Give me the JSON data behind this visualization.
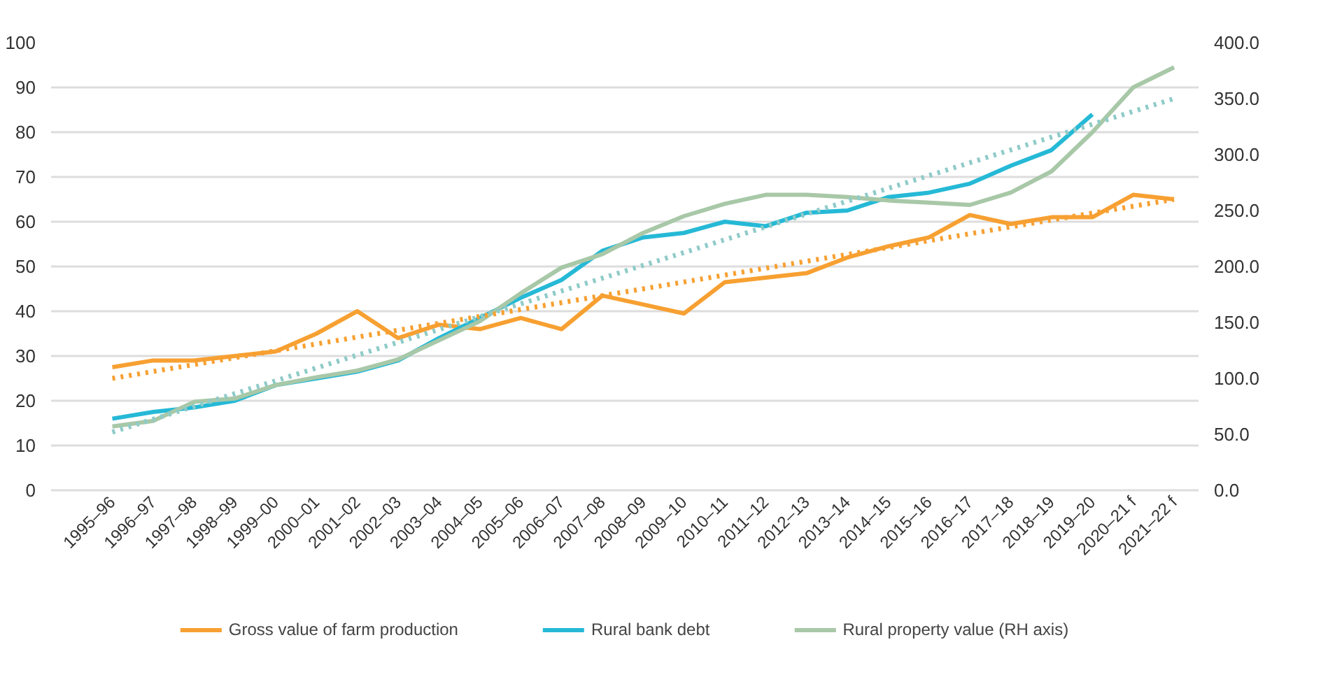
{
  "chart_data": {
    "type": "line",
    "categories": [
      "1995–96",
      "1996–97",
      "1997–98",
      "1998–99",
      "1999–00",
      "2000–01",
      "2001–02",
      "2002–03",
      "2003–04",
      "2004–05",
      "2005–06",
      "2006–07",
      "2007–08",
      "2008–09",
      "2009–10",
      "2010–11",
      "2011–12",
      "2012–13",
      "2013–14",
      "2014–15",
      "2015–16",
      "2016–17",
      "2017–18",
      "2018–19",
      "2019–20",
      "2020–21 f",
      "2021–22 f"
    ],
    "series": [
      {
        "name": "Gross value of farm production",
        "color": "#f7a032",
        "values": [
          27.5,
          29,
          29,
          30,
          31,
          35,
          40,
          34,
          37,
          36,
          38.5,
          36,
          43.5,
          41.5,
          39.5,
          46.5,
          47.5,
          48.5,
          52,
          54.5,
          56.5,
          61.5,
          59.5,
          61,
          61,
          66,
          65
        ]
      },
      {
        "name": "Rural bank debt",
        "color": "#25b9d6",
        "values": [
          16,
          17.5,
          18.5,
          20,
          23.5,
          25,
          26.5,
          29,
          34,
          38.5,
          43,
          47,
          53.5,
          56.5,
          57.5,
          60,
          59,
          62,
          62.5,
          65.5,
          66.5,
          68.5,
          72.5,
          76,
          84,
          null,
          null
        ]
      },
      {
        "name": "Rural property value (RH axis)",
        "color": "#a8c8a8",
        "axis": "y2",
        "values": [
          57,
          62,
          79,
          82,
          94,
          101,
          107,
          117,
          134,
          151,
          176,
          199,
          211,
          230,
          245,
          256,
          264,
          264,
          262,
          259,
          257,
          255,
          266,
          285,
          320,
          360,
          378
        ]
      },
      {
        "type": "line",
        "color": "#f7a032",
        "line_style": "dotted",
        "x": [
          "1995–96",
          "2021–22 f"
        ],
        "values": [
          25,
          65
        ]
      },
      {
        "type": "line",
        "color": "#8fcbc8",
        "line_style": "dotted",
        "axis": "y2",
        "x": [
          "1995–96",
          "2021–22 f"
        ],
        "values": [
          52,
          350
        ]
      }
    ],
    "ylim": [
      0,
      100
    ],
    "yticks": [
      0,
      10,
      20,
      30,
      40,
      50,
      60,
      70,
      80,
      90,
      100
    ],
    "y2lim": [
      0,
      400
    ],
    "y2ticks": [
      {
        "value": 0,
        "label": "0.0"
      },
      {
        "value": 50,
        "label": "50.0"
      },
      {
        "value": 100,
        "label": "100.0"
      },
      {
        "value": 150,
        "label": "150.0"
      },
      {
        "value": 200,
        "label": "200.0"
      },
      {
        "value": 250,
        "label": "250.0"
      },
      {
        "value": 300,
        "label": "300.0"
      },
      {
        "value": 350,
        "label": "350.0"
      },
      {
        "value": 400,
        "label": "400.0"
      }
    ],
    "grid": "y",
    "legend": "bottom",
    "line_style": "solid"
  }
}
